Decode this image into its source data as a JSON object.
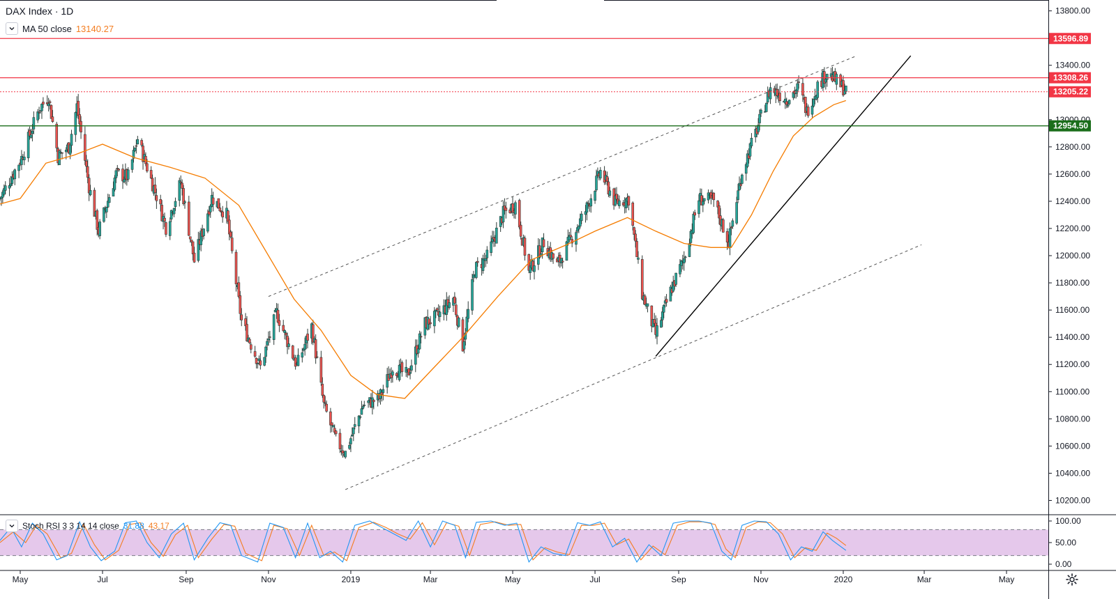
{
  "header": {
    "symbol_title": "DAX Index · 1D",
    "ma_label": "MA 50 close",
    "ma_value": "13140.27"
  },
  "indicator": {
    "label": "Stoch RSI 3 3 14 14 close",
    "k_value": "31.88",
    "d_value": "43.17"
  },
  "colors": {
    "up": "#26a69a",
    "down": "#ef5350",
    "candle_outline": "#2d3a36",
    "ma": "#f57c00",
    "resistance": "#f23645",
    "support": "#1b6e1b",
    "stoch_k": "#2196f3",
    "stoch_d": "#f47d20",
    "stoch_band": "#e1bee7"
  },
  "icons": [
    "chevron-down-icon",
    "gear-icon"
  ],
  "chart_data": {
    "type": "candlestick",
    "title": "DAX Index · 1D",
    "y_axis_ticks": [
      "13800.00",
      "13600.00",
      "13400.00",
      "13200.00",
      "13000.00",
      "12800.00",
      "12600.00",
      "12400.00",
      "12200.00",
      "12000.00",
      "11800.00",
      "11600.00",
      "11400.00",
      "11200.00",
      "11000.00",
      "10800.00",
      "10600.00",
      "10400.00",
      "10200.00"
    ],
    "y_range": [
      10100,
      13880
    ],
    "x_axis_ticks": [
      "May",
      "Jul",
      "Sep",
      "Nov",
      "2019",
      "Mar",
      "May",
      "Jul",
      "Sep",
      "Nov",
      "2020",
      "Mar",
      "May"
    ],
    "x_axis_tick_dates": [
      "2018-05-01",
      "2018-07-01",
      "2018-09-01",
      "2018-11-01",
      "2019-01-01",
      "2019-03-01",
      "2019-05-01",
      "2019-07-01",
      "2019-09-01",
      "2019-11-01",
      "2020-01-01",
      "2020-03-01",
      "2020-05-01"
    ],
    "x_range": [
      "2018-04-16",
      "2020-06-01"
    ],
    "price_path": [
      [
        "2018-04-16",
        12420
      ],
      [
        "2018-05-02",
        12720
      ],
      [
        "2018-05-15",
        13080
      ],
      [
        "2018-05-22",
        13170
      ],
      [
        "2018-05-29",
        12730
      ],
      [
        "2018-06-06",
        12800
      ],
      [
        "2018-06-12",
        13100
      ],
      [
        "2018-06-21",
        12510
      ],
      [
        "2018-06-28",
        12180
      ],
      [
        "2018-07-11",
        12600
      ],
      [
        "2018-07-20",
        12580
      ],
      [
        "2018-07-27",
        12860
      ],
      [
        "2018-08-10",
        12440
      ],
      [
        "2018-08-17",
        12210
      ],
      [
        "2018-08-28",
        12540
      ],
      [
        "2018-09-07",
        11960
      ],
      [
        "2018-09-20",
        12430
      ],
      [
        "2018-10-01",
        12300
      ],
      [
        "2018-10-12",
        11520
      ],
      [
        "2018-10-26",
        11180
      ],
      [
        "2018-11-07",
        11580
      ],
      [
        "2018-11-22",
        11190
      ],
      [
        "2018-12-03",
        11480
      ],
      [
        "2018-12-12",
        10900
      ],
      [
        "2018-12-21",
        10640
      ],
      [
        "2018-12-28",
        10550
      ],
      [
        "2019-01-10",
        10900
      ],
      [
        "2019-01-22",
        10950
      ],
      [
        "2019-02-01",
        11180
      ],
      [
        "2019-02-12",
        11120
      ],
      [
        "2019-02-25",
        11500
      ],
      [
        "2019-03-07",
        11560
      ],
      [
        "2019-03-18",
        11690
      ],
      [
        "2019-03-25",
        11340
      ],
      [
        "2019-04-03",
        11900
      ],
      [
        "2019-04-12",
        11990
      ],
      [
        "2019-04-24",
        12310
      ],
      [
        "2019-05-03",
        12380
      ],
      [
        "2019-05-13",
        11880
      ],
      [
        "2019-05-24",
        12100
      ],
      [
        "2019-06-03",
        11930
      ],
      [
        "2019-06-14",
        12140
      ],
      [
        "2019-06-24",
        12330
      ],
      [
        "2019-07-05",
        12620
      ],
      [
        "2019-07-16",
        12390
      ],
      [
        "2019-07-26",
        12420
      ],
      [
        "2019-08-05",
        11720
      ],
      [
        "2019-08-15",
        11420
      ],
      [
        "2019-08-26",
        11740
      ],
      [
        "2019-09-05",
        11980
      ],
      [
        "2019-09-16",
        12420
      ],
      [
        "2019-09-27",
        12400
      ],
      [
        "2019-10-08",
        12100
      ],
      [
        "2019-10-18",
        12620
      ],
      [
        "2019-10-29",
        12930
      ],
      [
        "2019-11-08",
        13230
      ],
      [
        "2019-11-20",
        13150
      ],
      [
        "2019-11-29",
        13240
      ],
      [
        "2019-12-05",
        13060
      ],
      [
        "2019-12-13",
        13250
      ],
      [
        "2019-12-20",
        13350
      ],
      [
        "2019-12-30",
        13250
      ],
      [
        "2020-01-03",
        13220
      ]
    ],
    "ma50": {
      "name": "MA 50 close",
      "last_value": 13140.27,
      "points": [
        [
          "2018-04-16",
          12380
        ],
        [
          "2018-05-01",
          12420
        ],
        [
          "2018-05-20",
          12680
        ],
        [
          "2018-06-10",
          12740
        ],
        [
          "2018-07-01",
          12820
        ],
        [
          "2018-07-25",
          12720
        ],
        [
          "2018-08-20",
          12650
        ],
        [
          "2018-09-15",
          12570
        ],
        [
          "2018-10-10",
          12370
        ],
        [
          "2018-11-01",
          12000
        ],
        [
          "2018-11-20",
          11680
        ],
        [
          "2018-12-10",
          11450
        ],
        [
          "2019-01-01",
          11120
        ],
        [
          "2019-01-20",
          10980
        ],
        [
          "2019-02-10",
          10950
        ],
        [
          "2019-03-01",
          11150
        ],
        [
          "2019-03-25",
          11400
        ],
        [
          "2019-04-20",
          11700
        ],
        [
          "2019-05-15",
          11970
        ],
        [
          "2019-06-10",
          12080
        ],
        [
          "2019-07-01",
          12180
        ],
        [
          "2019-07-25",
          12280
        ],
        [
          "2019-08-15",
          12180
        ],
        [
          "2019-09-05",
          12090
        ],
        [
          "2019-09-25",
          12060
        ],
        [
          "2019-10-10",
          12060
        ],
        [
          "2019-10-25",
          12300
        ],
        [
          "2019-11-10",
          12620
        ],
        [
          "2019-11-25",
          12880
        ],
        [
          "2019-12-10",
          13020
        ],
        [
          "2019-12-25",
          13110
        ],
        [
          "2020-01-03",
          13140.27
        ]
      ]
    },
    "horizontal_levels": [
      {
        "value": 13596.89,
        "label": "13596.89",
        "style": "solid",
        "color": "#f23645"
      },
      {
        "value": 13308.26,
        "label": "13308.26",
        "style": "solid",
        "color": "#f23645"
      },
      {
        "value": 13205.22,
        "label": "13205.22",
        "style": "dotted",
        "color": "#f23645"
      },
      {
        "value": 12954.5,
        "label": "12954.50",
        "style": "solid",
        "color": "#1b6e1b"
      }
    ],
    "trendlines": [
      {
        "style": "solid",
        "from": [
          "2019-08-15",
          11260
        ],
        "to": [
          "2020-02-20",
          13470
        ]
      },
      {
        "style": "dashed",
        "from": [
          "2018-11-01",
          11700
        ],
        "to": [
          "2020-01-11",
          13470
        ]
      },
      {
        "style": "dashed",
        "from": [
          "2018-12-28",
          10280
        ],
        "to": [
          "2020-02-28",
          12080
        ]
      }
    ],
    "stoch_rsi": {
      "name": "Stoch RSI 3 3 14 14 close",
      "k_last": 31.88,
      "d_last": 43.17,
      "y_ticks": [
        "100.00",
        "50.00",
        "0.00"
      ],
      "y_range": [
        0,
        100
      ],
      "band": [
        20,
        80
      ],
      "k_points": [
        [
          "2018-04-16",
          55
        ],
        [
          "2018-04-24",
          85
        ],
        [
          "2018-05-02",
          40
        ],
        [
          "2018-05-10",
          95
        ],
        [
          "2018-05-18",
          70
        ],
        [
          "2018-05-28",
          10
        ],
        [
          "2018-06-05",
          20
        ],
        [
          "2018-06-14",
          98
        ],
        [
          "2018-06-22",
          40
        ],
        [
          "2018-06-30",
          8
        ],
        [
          "2018-07-10",
          30
        ],
        [
          "2018-07-18",
          96
        ],
        [
          "2018-07-26",
          100
        ],
        [
          "2018-08-03",
          50
        ],
        [
          "2018-08-12",
          15
        ],
        [
          "2018-08-21",
          70
        ],
        [
          "2018-08-30",
          95
        ],
        [
          "2018-09-07",
          10
        ],
        [
          "2018-09-17",
          60
        ],
        [
          "2018-09-26",
          96
        ],
        [
          "2018-10-04",
          90
        ],
        [
          "2018-10-12",
          20
        ],
        [
          "2018-10-24",
          5
        ],
        [
          "2018-11-02",
          95
        ],
        [
          "2018-11-12",
          85
        ],
        [
          "2018-11-21",
          15
        ],
        [
          "2018-11-30",
          95
        ],
        [
          "2018-12-09",
          15
        ],
        [
          "2018-12-17",
          30
        ],
        [
          "2018-12-26",
          5
        ],
        [
          "2019-01-04",
          90
        ],
        [
          "2019-01-15",
          100
        ],
        [
          "2019-01-24",
          85
        ],
        [
          "2019-02-02",
          70
        ],
        [
          "2019-02-11",
          55
        ],
        [
          "2019-02-20",
          100
        ],
        [
          "2019-03-01",
          40
        ],
        [
          "2019-03-10",
          100
        ],
        [
          "2019-03-19",
          90
        ],
        [
          "2019-03-27",
          15
        ],
        [
          "2019-04-04",
          97
        ],
        [
          "2019-04-15",
          100
        ],
        [
          "2019-04-25",
          90
        ],
        [
          "2019-05-04",
          95
        ],
        [
          "2019-05-13",
          5
        ],
        [
          "2019-05-22",
          40
        ],
        [
          "2019-05-31",
          25
        ],
        [
          "2019-06-09",
          20
        ],
        [
          "2019-06-18",
          96
        ],
        [
          "2019-06-27",
          90
        ],
        [
          "2019-07-05",
          98
        ],
        [
          "2019-07-14",
          40
        ],
        [
          "2019-07-23",
          60
        ],
        [
          "2019-08-01",
          5
        ],
        [
          "2019-08-10",
          45
        ],
        [
          "2019-08-19",
          20
        ],
        [
          "2019-08-28",
          95
        ],
        [
          "2019-09-06",
          100
        ],
        [
          "2019-09-16",
          100
        ],
        [
          "2019-09-25",
          95
        ],
        [
          "2019-10-03",
          30
        ],
        [
          "2019-10-10",
          10
        ],
        [
          "2019-10-18",
          90
        ],
        [
          "2019-10-27",
          100
        ],
        [
          "2019-11-05",
          98
        ],
        [
          "2019-11-14",
          70
        ],
        [
          "2019-11-23",
          10
        ],
        [
          "2019-12-01",
          40
        ],
        [
          "2019-12-09",
          30
        ],
        [
          "2019-12-17",
          75
        ],
        [
          "2019-12-24",
          55
        ],
        [
          "2020-01-03",
          31.88
        ]
      ],
      "d_points": [
        [
          "2018-04-16",
          50
        ],
        [
          "2018-04-26",
          75
        ],
        [
          "2018-05-05",
          50
        ],
        [
          "2018-05-13",
          90
        ],
        [
          "2018-05-21",
          70
        ],
        [
          "2018-05-31",
          15
        ],
        [
          "2018-06-08",
          25
        ],
        [
          "2018-06-17",
          92
        ],
        [
          "2018-06-25",
          45
        ],
        [
          "2018-07-03",
          10
        ],
        [
          "2018-07-13",
          32
        ],
        [
          "2018-07-21",
          92
        ],
        [
          "2018-07-29",
          96
        ],
        [
          "2018-08-06",
          50
        ],
        [
          "2018-08-15",
          18
        ],
        [
          "2018-08-24",
          68
        ],
        [
          "2018-09-02",
          90
        ],
        [
          "2018-09-10",
          15
        ],
        [
          "2018-09-20",
          58
        ],
        [
          "2018-09-29",
          92
        ],
        [
          "2018-10-07",
          88
        ],
        [
          "2018-10-15",
          25
        ],
        [
          "2018-10-27",
          8
        ],
        [
          "2018-11-05",
          90
        ],
        [
          "2018-11-15",
          82
        ],
        [
          "2018-11-24",
          20
        ],
        [
          "2018-12-03",
          90
        ],
        [
          "2018-12-12",
          20
        ],
        [
          "2018-12-20",
          28
        ],
        [
          "2018-12-29",
          8
        ],
        [
          "2019-01-07",
          85
        ],
        [
          "2019-01-18",
          97
        ],
        [
          "2019-01-27",
          85
        ],
        [
          "2019-02-05",
          70
        ],
        [
          "2019-02-14",
          58
        ],
        [
          "2019-02-23",
          96
        ],
        [
          "2019-03-04",
          45
        ],
        [
          "2019-03-13",
          96
        ],
        [
          "2019-03-22",
          88
        ],
        [
          "2019-03-30",
          20
        ],
        [
          "2019-04-07",
          92
        ],
        [
          "2019-04-18",
          98
        ],
        [
          "2019-04-28",
          90
        ],
        [
          "2019-05-07",
          92
        ],
        [
          "2019-05-16",
          10
        ],
        [
          "2019-05-25",
          38
        ],
        [
          "2019-06-03",
          28
        ],
        [
          "2019-06-12",
          22
        ],
        [
          "2019-06-21",
          90
        ],
        [
          "2019-06-30",
          90
        ],
        [
          "2019-07-08",
          95
        ],
        [
          "2019-07-17",
          45
        ],
        [
          "2019-07-26",
          58
        ],
        [
          "2019-08-04",
          10
        ],
        [
          "2019-08-13",
          42
        ],
        [
          "2019-08-22",
          22
        ],
        [
          "2019-08-31",
          90
        ],
        [
          "2019-09-09",
          98
        ],
        [
          "2019-09-19",
          98
        ],
        [
          "2019-09-28",
          92
        ],
        [
          "2019-10-06",
          35
        ],
        [
          "2019-10-13",
          15
        ],
        [
          "2019-10-21",
          85
        ],
        [
          "2019-10-30",
          98
        ],
        [
          "2019-11-08",
          96
        ],
        [
          "2019-11-17",
          70
        ],
        [
          "2019-11-26",
          15
        ],
        [
          "2019-12-04",
          38
        ],
        [
          "2019-12-12",
          32
        ],
        [
          "2019-12-20",
          72
        ],
        [
          "2019-12-27",
          60
        ],
        [
          "2020-01-03",
          43.17
        ]
      ]
    }
  }
}
